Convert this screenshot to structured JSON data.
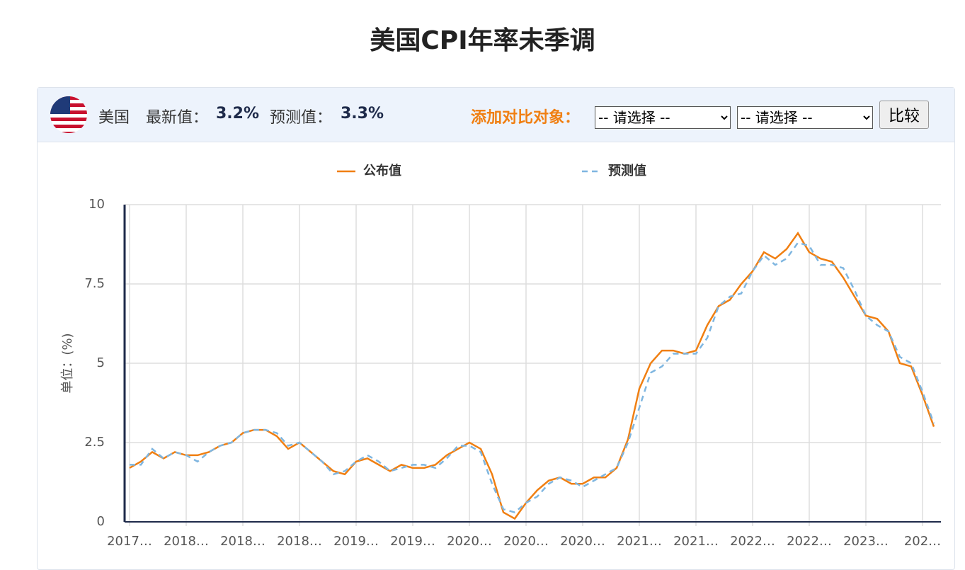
{
  "header": {
    "title": "美国CPI年率未季调",
    "country": "美国",
    "latest_label": "最新值：",
    "latest": "3.2%",
    "forecast_label": "预测值：",
    "forecast": "3.3%",
    "compare_label": "添加对比对象：",
    "select_1": "-- 请选择 --",
    "select_2": "-- 请选择 --",
    "button": "比较"
  },
  "chart_data": {
    "type": "line",
    "ylabel": "单位：(%)",
    "categories": [
      "2017…",
      null,
      null,
      null,
      null,
      "2018…",
      null,
      null,
      null,
      null,
      "2018…",
      null,
      null,
      null,
      null,
      "2018…",
      null,
      null,
      null,
      null,
      "2019…",
      null,
      null,
      null,
      null,
      "2019…",
      null,
      null,
      null,
      null,
      "2020…",
      null,
      null,
      null,
      null,
      "2020…",
      null,
      null,
      null,
      null,
      "2020…",
      null,
      null,
      null,
      null,
      "2021…",
      null,
      null,
      null,
      null,
      "2021…",
      null,
      null,
      null,
      null,
      "2022…",
      null,
      null,
      null,
      null,
      "2022…",
      null,
      null,
      null,
      null,
      "2023…",
      null,
      null,
      null,
      null,
      "202…",
      null
    ],
    "series": [
      {
        "name": "公布值",
        "color": "#f07f12",
        "dashed": false,
        "values": [
          1.7,
          1.9,
          2.2,
          2.0,
          2.2,
          2.1,
          2.1,
          2.2,
          2.4,
          2.5,
          2.8,
          2.9,
          2.9,
          2.7,
          2.3,
          2.5,
          2.2,
          1.9,
          1.6,
          1.5,
          1.9,
          2.0,
          1.8,
          1.6,
          1.8,
          1.7,
          1.7,
          1.8,
          2.1,
          2.3,
          2.5,
          2.3,
          1.5,
          0.3,
          0.1,
          0.6,
          1.0,
          1.3,
          1.4,
          1.2,
          1.2,
          1.4,
          1.4,
          1.7,
          2.6,
          4.2,
          5.0,
          5.4,
          5.4,
          5.3,
          5.4,
          6.2,
          6.8,
          7.0,
          7.5,
          7.9,
          8.5,
          8.3,
          8.6,
          9.1,
          8.5,
          8.3,
          8.2,
          7.7,
          7.1,
          6.5,
          6.4,
          6.0,
          5.0,
          4.9,
          4.0,
          3.0
        ]
      },
      {
        "name": "预测值",
        "color": "#7fb6e0",
        "dashed": true,
        "values": [
          1.8,
          1.8,
          2.3,
          2.0,
          2.2,
          2.1,
          1.9,
          2.2,
          2.4,
          2.5,
          2.8,
          2.9,
          2.9,
          2.8,
          2.4,
          2.5,
          2.2,
          1.9,
          1.5,
          1.6,
          1.9,
          2.1,
          1.9,
          1.6,
          1.7,
          1.8,
          1.8,
          1.7,
          2.0,
          2.4,
          2.4,
          2.2,
          1.2,
          0.4,
          0.3,
          0.6,
          0.8,
          1.2,
          1.4,
          1.3,
          1.1,
          1.3,
          1.5,
          1.7,
          2.5,
          3.6,
          4.7,
          4.9,
          5.3,
          5.3,
          5.3,
          5.8,
          6.8,
          7.1,
          7.2,
          7.9,
          8.4,
          8.1,
          8.3,
          8.8,
          8.7,
          8.1,
          8.1,
          8.0,
          7.3,
          6.5,
          6.2,
          6.0,
          5.2,
          5.0,
          4.1,
          3.1
        ]
      }
    ],
    "ylim": [
      0,
      10
    ],
    "yticks": [
      0,
      2.5,
      5,
      7.5,
      10
    ],
    "grid": true
  }
}
